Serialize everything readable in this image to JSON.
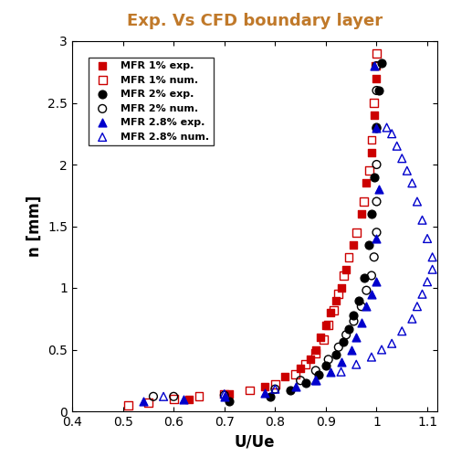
{
  "chart_data": {
    "type": "scatter",
    "title": "Exp. Vs CFD boundary layer",
    "x_label": "U/Ue",
    "y_label": "n [mm]",
    "xlim": [
      0.4,
      1.12
    ],
    "xticks": [
      0.4,
      0.5,
      0.6,
      0.7,
      0.8,
      0.9,
      1,
      1.1
    ],
    "ylim": [
      0,
      3
    ],
    "yticks": [
      0,
      0.5,
      1,
      1.5,
      2,
      2.5,
      3
    ],
    "legend": "upper left",
    "series": [
      {
        "name": "MFR 1% exp.",
        "color": "#cc0000",
        "marker": "square",
        "x": [
          0.63,
          0.71,
          0.78,
          0.82,
          0.85,
          0.87,
          0.88,
          0.89,
          0.9,
          0.91,
          0.92,
          0.93,
          0.94,
          0.955,
          0.97,
          0.98,
          0.99,
          0.995,
          1.0
        ],
        "values": [
          0.1,
          0.14,
          0.2,
          0.28,
          0.35,
          0.42,
          0.5,
          0.6,
          0.7,
          0.8,
          0.9,
          1.0,
          1.15,
          1.35,
          1.6,
          1.85,
          2.1,
          2.4,
          2.7
        ]
      },
      {
        "name": "MFR 1% num.",
        "color": "#cc0000",
        "marker": "square_open",
        "x": [
          0.51,
          0.55,
          0.6,
          0.65,
          0.7,
          0.75,
          0.8,
          0.84,
          0.86,
          0.88,
          0.895,
          0.905,
          0.915,
          0.925,
          0.935,
          0.945,
          0.96,
          0.975,
          0.985,
          0.99,
          0.995,
          0.998,
          1.0
        ],
        "values": [
          0.05,
          0.07,
          0.1,
          0.12,
          0.14,
          0.17,
          0.22,
          0.3,
          0.38,
          0.47,
          0.58,
          0.7,
          0.82,
          0.95,
          1.1,
          1.25,
          1.45,
          1.7,
          1.95,
          2.2,
          2.5,
          2.8,
          2.9
        ]
      },
      {
        "name": "MFR 2% exp.",
        "color": "#000000",
        "marker": "circle",
        "x": [
          0.71,
          0.79,
          0.83,
          0.86,
          0.885,
          0.9,
          0.92,
          0.935,
          0.945,
          0.955,
          0.965,
          0.975,
          0.985,
          0.99,
          0.995,
          1.0,
          1.005,
          1.01
        ],
        "values": [
          0.08,
          0.12,
          0.17,
          0.23,
          0.3,
          0.37,
          0.46,
          0.56,
          0.67,
          0.78,
          0.9,
          1.08,
          1.35,
          1.6,
          1.9,
          2.3,
          2.6,
          2.82
        ]
      },
      {
        "name": "MFR 2% num.",
        "color": "#000000",
        "marker": "circle_open",
        "x": [
          0.56,
          0.6,
          0.7,
          0.8,
          0.85,
          0.88,
          0.905,
          0.925,
          0.94,
          0.955,
          0.97,
          0.98,
          0.99,
          0.995,
          1.0,
          1.0,
          1.0,
          1.0,
          1.0,
          1.0
        ],
        "values": [
          0.12,
          0.12,
          0.13,
          0.18,
          0.25,
          0.33,
          0.42,
          0.52,
          0.62,
          0.73,
          0.85,
          0.98,
          1.1,
          1.25,
          1.45,
          1.7,
          2.0,
          2.3,
          2.6,
          2.8
        ]
      },
      {
        "name": "MFR 2.8% exp.",
        "color": "#0000cc",
        "marker": "triangle",
        "x": [
          0.54,
          0.62,
          0.7,
          0.78,
          0.84,
          0.88,
          0.91,
          0.93,
          0.95,
          0.96,
          0.97,
          0.98,
          0.99,
          1.0,
          1.0,
          1.005,
          1.0,
          0.995
        ],
        "values": [
          0.08,
          0.1,
          0.12,
          0.15,
          0.2,
          0.25,
          0.32,
          0.4,
          0.5,
          0.6,
          0.72,
          0.85,
          0.95,
          1.05,
          1.4,
          1.8,
          2.3,
          2.8
        ]
      },
      {
        "name": "MFR 2.8% num.",
        "color": "#0000cc",
        "marker": "triangle_open",
        "x": [
          0.58,
          0.7,
          0.8,
          0.88,
          0.93,
          0.96,
          0.99,
          1.01,
          1.03,
          1.05,
          1.07,
          1.08,
          1.09,
          1.1,
          1.11,
          1.11,
          1.1,
          1.09,
          1.08,
          1.07,
          1.06,
          1.05,
          1.04,
          1.03,
          1.02
        ],
        "values": [
          0.12,
          0.14,
          0.18,
          0.25,
          0.32,
          0.38,
          0.44,
          0.5,
          0.55,
          0.65,
          0.75,
          0.85,
          0.95,
          1.05,
          1.15,
          1.25,
          1.4,
          1.55,
          1.7,
          1.85,
          1.95,
          2.05,
          2.15,
          2.25,
          2.3
        ]
      }
    ]
  }
}
